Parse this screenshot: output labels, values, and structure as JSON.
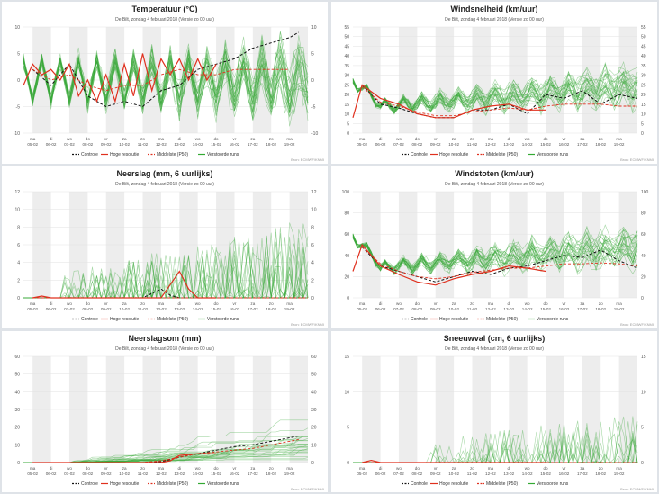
{
  "subtitle": "De Bilt, zondag 4 februari 2018 (Versie zo 00 uur)",
  "source": "Bron: ECMWF/KNMI",
  "legend": [
    {
      "label": "Controle",
      "style": "dash",
      "color": "#111111"
    },
    {
      "label": "Hoge resolutie",
      "style": "solid",
      "color": "#e0301e"
    },
    {
      "label": "Middelste (P50)",
      "style": "dash",
      "color": "#e0301e"
    },
    {
      "label": "Verstoorde runs",
      "style": "solid",
      "color": "#33aa33"
    }
  ],
  "x_days": [
    {
      "day": "ma",
      "date": "05-02"
    },
    {
      "day": "di",
      "date": "06-02"
    },
    {
      "day": "wo",
      "date": "07-02"
    },
    {
      "day": "do",
      "date": "08-02"
    },
    {
      "day": "vr",
      "date": "09-02"
    },
    {
      "day": "za",
      "date": "10-02"
    },
    {
      "day": "zo",
      "date": "11-02"
    },
    {
      "day": "ma",
      "date": "12-02"
    },
    {
      "day": "di",
      "date": "13-02"
    },
    {
      "day": "wo",
      "date": "14-02"
    },
    {
      "day": "do",
      "date": "15-02"
    },
    {
      "day": "vr",
      "date": "16-02"
    },
    {
      "day": "za",
      "date": "17-02"
    },
    {
      "day": "zo",
      "date": "18-02"
    },
    {
      "day": "ma",
      "date": "19-02"
    }
  ],
  "chart_data": [
    {
      "id": "temperatuur",
      "type": "line",
      "title": "Temperatuur (°C)",
      "ylim": [
        -10,
        10
      ],
      "yticks": [
        -10,
        -5,
        0,
        5,
        10
      ],
      "x_range_days": [
        -0.5,
        15
      ],
      "series": [
        {
          "name": "Controle",
          "x": [
            0,
            1,
            2,
            3,
            4,
            5,
            6,
            7,
            8,
            9,
            10,
            11,
            12,
            13,
            14,
            14.5
          ],
          "y": [
            2,
            -1,
            3,
            -3,
            -5,
            -4,
            -5,
            -2,
            -1,
            2,
            3,
            4,
            6,
            7,
            8,
            9
          ]
        },
        {
          "name": "Hoge resolutie",
          "x": [
            -0.5,
            0,
            0.5,
            1,
            1.5,
            2,
            2.5,
            3,
            3.5,
            4,
            4.5,
            5,
            5.5,
            6,
            6.5,
            7,
            7.5,
            8,
            8.5,
            9,
            9.5,
            10
          ],
          "y": [
            -1,
            3,
            1,
            2,
            0,
            3,
            -3,
            0,
            -4,
            1,
            -4,
            3,
            -3,
            5,
            -2,
            4,
            1,
            4,
            0,
            4,
            0,
            3
          ]
        },
        {
          "name": "Middelste (P50)",
          "x": [
            0,
            1,
            2,
            3,
            4,
            5,
            6,
            7,
            8,
            9,
            10,
            11,
            12,
            13,
            14
          ],
          "y": [
            2,
            0,
            1,
            -1,
            -2,
            -1,
            -1,
            1,
            2,
            1,
            1,
            2,
            2,
            2,
            2
          ]
        }
      ]
    },
    {
      "id": "windsnelheid",
      "type": "line",
      "title": "Windsnelheid (km/uur)",
      "ylim": [
        0,
        55
      ],
      "yticks": [
        0,
        5,
        10,
        15,
        20,
        25,
        30,
        35,
        40,
        45,
        50,
        55
      ],
      "x_range_days": [
        -0.5,
        15
      ],
      "series": [
        {
          "name": "Controle",
          "x": [
            0,
            1,
            2,
            3,
            4,
            5,
            6,
            7,
            8,
            9,
            10,
            11,
            12,
            13,
            14,
            15
          ],
          "y": [
            25,
            15,
            13,
            10,
            8,
            8,
            12,
            12,
            15,
            10,
            20,
            18,
            22,
            15,
            20,
            18
          ]
        },
        {
          "name": "Hoge resolutie",
          "x": [
            -0.5,
            0,
            1,
            2,
            3,
            4,
            5,
            6,
            7,
            8,
            9,
            10
          ],
          "y": [
            8,
            25,
            18,
            15,
            10,
            8,
            8,
            12,
            14,
            15,
            12,
            12
          ]
        },
        {
          "name": "Middelste (P50)",
          "x": [
            0,
            1,
            2,
            3,
            4,
            5,
            6,
            7,
            8,
            9,
            10,
            11,
            12,
            13,
            14,
            15
          ],
          "y": [
            24,
            16,
            14,
            11,
            9,
            9,
            11,
            12,
            13,
            12,
            14,
            15,
            15,
            15,
            14,
            14
          ]
        }
      ]
    },
    {
      "id": "neerslag",
      "type": "line",
      "title": "Neerslag (mm, 6 uurlijks)",
      "ylim": [
        0,
        12
      ],
      "yticks": [
        0,
        2,
        4,
        6,
        8,
        10,
        12
      ],
      "x_range_days": [
        -0.5,
        15
      ],
      "series": [
        {
          "name": "Controle",
          "x": [
            0,
            6,
            6.5,
            7,
            7.5,
            8,
            8.5,
            15
          ],
          "y": [
            0,
            0,
            0.5,
            1,
            0.3,
            0,
            0,
            0
          ]
        },
        {
          "name": "Hoge resolutie",
          "x": [
            0,
            0.5,
            1,
            7,
            7.5,
            8,
            8.5,
            9,
            10
          ],
          "y": [
            0,
            0.2,
            0,
            0,
            1.5,
            3,
            1,
            0,
            0
          ]
        },
        {
          "name": "Middelste (P50)",
          "x": [
            0,
            15
          ],
          "y": [
            0,
            0
          ]
        }
      ]
    },
    {
      "id": "windstoten",
      "type": "line",
      "title": "Windstoten (km/uur)",
      "ylim": [
        0,
        100
      ],
      "yticks": [
        0,
        20,
        40,
        60,
        80,
        100
      ],
      "x_range_days": [
        -0.5,
        15
      ],
      "series": [
        {
          "name": "Controle",
          "x": [
            0,
            1,
            2,
            3,
            4,
            5,
            6,
            7,
            8,
            9,
            10,
            11,
            12,
            13,
            14,
            15
          ],
          "y": [
            48,
            30,
            25,
            20,
            15,
            20,
            25,
            22,
            28,
            30,
            35,
            40,
            38,
            45,
            35,
            28
          ]
        },
        {
          "name": "Hoge resolutie",
          "x": [
            -0.5,
            0,
            1,
            2,
            3,
            4,
            5,
            6,
            7,
            8,
            9,
            10
          ],
          "y": [
            25,
            50,
            30,
            22,
            15,
            12,
            18,
            22,
            25,
            30,
            28,
            25
          ]
        },
        {
          "name": "Middelste (P50)",
          "x": [
            0,
            1,
            2,
            3,
            4,
            5,
            6,
            7,
            8,
            9,
            10,
            11,
            12,
            13,
            14,
            15
          ],
          "y": [
            48,
            32,
            25,
            20,
            18,
            20,
            24,
            26,
            28,
            28,
            30,
            32,
            32,
            33,
            32,
            30
          ]
        }
      ]
    },
    {
      "id": "neerslagsom",
      "type": "line",
      "title": "Neerslagsom (mm)",
      "ylim": [
        0,
        60
      ],
      "yticks": [
        0,
        10,
        20,
        30,
        40,
        50,
        60
      ],
      "x_range_days": [
        -0.5,
        15
      ],
      "series": [
        {
          "name": "Controle",
          "x": [
            0,
            6,
            7,
            8,
            9,
            10,
            11,
            12,
            13,
            14,
            14.5
          ],
          "y": [
            0,
            0,
            0.5,
            3,
            5,
            7,
            9,
            10,
            12,
            14,
            15
          ]
        },
        {
          "name": "Hoge resolutie",
          "x": [
            0,
            7,
            7.5,
            8,
            9,
            10
          ],
          "y": [
            0,
            0,
            1,
            4,
            5,
            5
          ]
        },
        {
          "name": "Middelste (P50)",
          "x": [
            0,
            6,
            7,
            8,
            9,
            10,
            11,
            12,
            13,
            14,
            14.5
          ],
          "y": [
            0,
            0,
            1,
            3,
            5,
            6,
            7,
            8,
            10,
            12,
            13
          ]
        }
      ]
    },
    {
      "id": "sneeuwval",
      "type": "line",
      "title": "Sneeuwval (cm, 6 uurlijks)",
      "ylim": [
        0,
        15
      ],
      "yticks": [
        0,
        5,
        10,
        15
      ],
      "x_range_days": [
        -0.5,
        15
      ],
      "series": [
        {
          "name": "Controle",
          "x": [
            0,
            15
          ],
          "y": [
            0,
            0
          ]
        },
        {
          "name": "Hoge resolutie",
          "x": [
            0,
            0.5,
            1,
            10
          ],
          "y": [
            0,
            0.3,
            0,
            0
          ]
        },
        {
          "name": "Middelste (P50)",
          "x": [
            0,
            15
          ],
          "y": [
            0,
            0
          ]
        }
      ]
    }
  ]
}
